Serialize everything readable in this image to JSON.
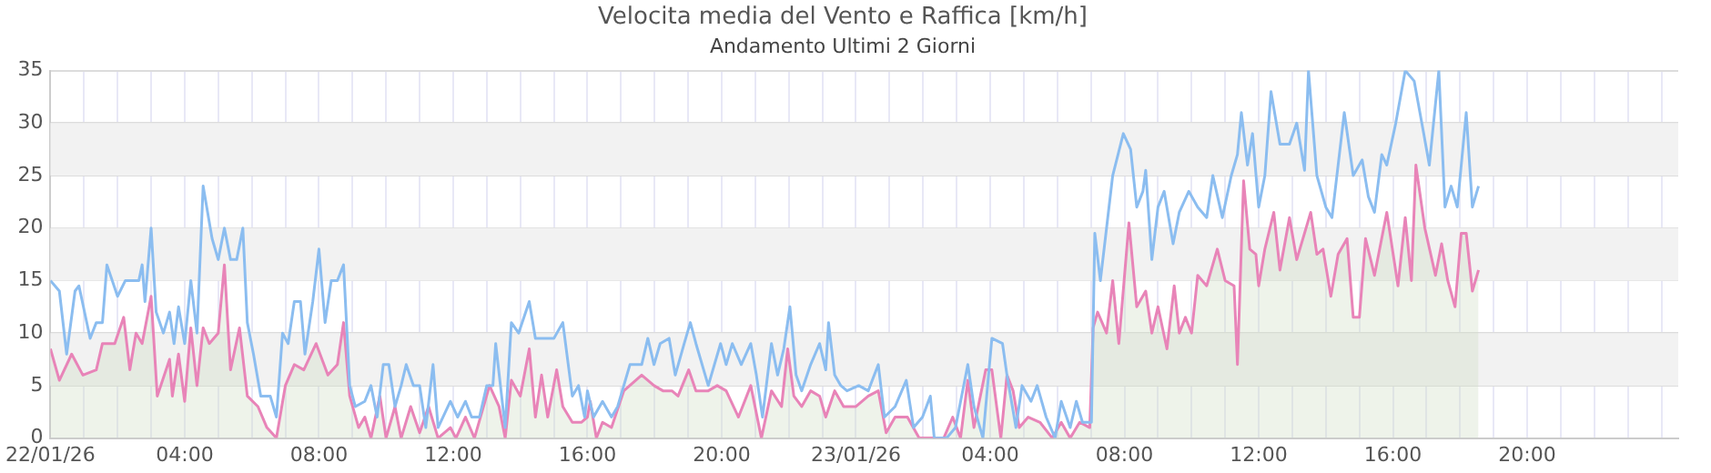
{
  "chart_data": {
    "type": "line",
    "title": "Velocita media del Vento e Raffica [km/h]",
    "subtitle": "Andamento Ultimi 2 Giorni",
    "xlim": [
      "--01-22T00:00",
      "--01-24T00:30"
    ],
    "xticks": [
      {
        "value": "--01-22T00:00",
        "label": "22/01/26"
      },
      {
        "value": "--01-22T01:00",
        "label": null
      },
      {
        "value": "--01-22T02:00",
        "label": null
      },
      {
        "value": "--01-22T03:00",
        "label": null
      },
      {
        "value": "--01-22T04:00",
        "label": "04:00"
      },
      {
        "value": "--01-22T05:00",
        "label": null
      },
      {
        "value": "--01-22T06:00",
        "label": null
      },
      {
        "value": "--01-22T07:00",
        "label": null
      },
      {
        "value": "--01-22T08:00",
        "label": "08:00"
      },
      {
        "value": "--01-22T09:00",
        "label": null
      },
      {
        "value": "--01-22T10:00",
        "label": null
      },
      {
        "value": "--01-22T11:00",
        "label": null
      },
      {
        "value": "--01-22T12:00",
        "label": "12:00"
      },
      {
        "value": "--01-22T13:00",
        "label": null
      },
      {
        "value": "--01-22T14:00",
        "label": null
      },
      {
        "value": "--01-22T15:00",
        "label": null
      },
      {
        "value": "--01-22T16:00",
        "label": "16:00"
      },
      {
        "value": "--01-22T17:00",
        "label": null
      },
      {
        "value": "--01-22T18:00",
        "label": null
      },
      {
        "value": "--01-22T19:00",
        "label": null
      },
      {
        "value": "--01-22T20:00",
        "label": "20:00"
      },
      {
        "value": "--01-22T21:00",
        "label": null
      },
      {
        "value": "--01-22T22:00",
        "label": null
      },
      {
        "value": "--01-22T23:00",
        "label": null
      },
      {
        "value": "--01-23T00:00",
        "label": "23/01/26"
      },
      {
        "value": "--01-23T01:00",
        "label": null
      },
      {
        "value": "--01-23T02:00",
        "label": null
      },
      {
        "value": "--01-23T03:00",
        "label": null
      },
      {
        "value": "--01-23T04:00",
        "label": "04:00"
      },
      {
        "value": "--01-23T05:00",
        "label": null
      },
      {
        "value": "--01-23T06:00",
        "label": null
      },
      {
        "value": "--01-23T07:00",
        "label": null
      },
      {
        "value": "--01-23T08:00",
        "label": "08:00"
      },
      {
        "value": "--01-23T09:00",
        "label": null
      },
      {
        "value": "--01-23T10:00",
        "label": null
      },
      {
        "value": "--01-23T11:00",
        "label": null
      },
      {
        "value": "--01-23T12:00",
        "label": "12:00"
      },
      {
        "value": "--01-23T13:00",
        "label": null
      },
      {
        "value": "--01-23T14:00",
        "label": null
      },
      {
        "value": "--01-23T15:00",
        "label": null
      },
      {
        "value": "--01-23T16:00",
        "label": "16:00"
      },
      {
        "value": "--01-23T17:00",
        "label": null
      },
      {
        "value": "--01-23T18:00",
        "label": null
      },
      {
        "value": "--01-23T19:00",
        "label": null
      },
      {
        "value": "--01-23T20:00",
        "label": "20:00"
      },
      {
        "value": "--01-23T21:00",
        "label": null
      },
      {
        "value": "--01-23T22:00",
        "label": null
      },
      {
        "value": "--01-23T23:00",
        "label": null
      },
      {
        "value": "--01-24T00:00",
        "label": null
      }
    ],
    "ylim": [
      0,
      35
    ],
    "yticks": [
      0,
      5,
      10,
      15,
      20,
      25,
      30,
      35
    ],
    "grid": true,
    "legend": false,
    "marker": "none",
    "line_style": "solid",
    "bands": [
      {
        "axis": "y",
        "from": 5,
        "to": 10,
        "color": "#f2f2f2"
      },
      {
        "axis": "y",
        "from": 15,
        "to": 20,
        "color": "#f2f2f2"
      },
      {
        "axis": "y",
        "from": 25,
        "to": 30,
        "color": "#f2f2f2"
      }
    ],
    "series": [
      {
        "color": "#8bbdf0",
        "x": [
          "--01-22T00:00",
          "--01-22T00:16",
          "--01-22T00:29",
          "--01-22T00:44",
          "--01-22T00:51",
          "--01-22T01:11",
          "--01-22T01:22",
          "--01-22T01:33",
          "--01-22T01:41",
          "--01-22T02:00",
          "--01-22T02:14",
          "--01-22T02:38",
          "--01-22T02:44",
          "--01-22T02:49",
          "--01-22T03:00",
          "--01-22T03:09",
          "--01-22T03:22",
          "--01-22T03:33",
          "--01-22T03:41",
          "--01-22T03:49",
          "--01-22T04:00",
          "--01-22T04:11",
          "--01-22T04:22",
          "--01-22T04:33",
          "--01-22T04:49",
          "--01-22T05:00",
          "--01-22T05:11",
          "--01-22T05:22",
          "--01-22T05:33",
          "--01-22T05:44",
          "--01-22T05:52",
          "--01-22T06:03",
          "--01-22T06:16",
          "--01-22T06:33",
          "--01-22T06:44",
          "--01-22T06:55",
          "--01-22T07:05",
          "--01-22T07:16",
          "--01-22T07:27",
          "--01-22T07:35",
          "--01-22T07:49",
          "--01-22T08:00",
          "--01-22T08:11",
          "--01-22T08:22",
          "--01-22T08:33",
          "--01-22T08:44",
          "--01-22T08:55",
          "--01-22T09:05",
          "--01-22T09:22",
          "--01-22T09:33",
          "--01-22T09:44",
          "--01-22T09:55",
          "--01-22T10:05",
          "--01-22T10:16",
          "--01-22T10:27",
          "--01-22T10:36",
          "--01-22T10:49",
          "--01-22T11:00",
          "--01-22T11:11",
          "--01-22T11:24",
          "--01-22T11:33",
          "--01-22T11:55",
          "--01-22T12:08",
          "--01-22T12:22",
          "--01-22T12:33",
          "--01-22T12:47",
          "--01-22T13:00",
          "--01-22T13:11",
          "--01-22T13:16",
          "--01-22T13:33",
          "--01-22T13:44",
          "--01-22T13:57",
          "--01-22T14:16",
          "--01-22T14:27",
          "--01-22T15:00",
          "--01-22T15:16",
          "--01-22T15:33",
          "--01-22T15:44",
          "--01-22T15:55",
          "--01-22T16:00",
          "--01-22T16:11",
          "--01-22T16:27",
          "--01-22T16:43",
          "--01-22T16:54",
          "--01-22T17:16",
          "--01-22T17:37",
          "--01-22T17:48",
          "--01-22T17:59",
          "--01-22T18:10",
          "--01-22T18:26",
          "--01-22T18:37",
          "--01-22T18:53",
          "--01-22T19:04",
          "--01-22T19:14",
          "--01-22T19:36",
          "--01-22T19:58",
          "--01-22T20:08",
          "--01-22T20:19",
          "--01-22T20:35",
          "--01-22T20:52",
          "--01-22T21:02",
          "--01-22T21:13",
          "--01-22T21:29",
          "--01-22T21:40",
          "--01-22T21:51",
          "--01-22T22:02",
          "--01-22T22:13",
          "--01-22T22:23",
          "--01-22T22:39",
          "--01-22T22:55",
          "--01-22T23:06",
          "--01-22T23:11",
          "--01-22T23:22",
          "--01-22T23:33",
          "--01-22T23:44",
          "--01-23T00:05",
          "--01-23T00:22",
          "--01-23T00:40",
          "--01-23T00:51",
          "--01-23T01:10",
          "--01-23T01:30",
          "--01-23T01:43",
          "--01-23T01:59",
          "--01-23T02:13",
          "--01-23T02:20",
          "--01-23T02:42",
          "--01-23T02:58",
          "--01-23T03:20",
          "--01-23T03:31",
          "--01-23T03:47",
          "--01-23T04:03",
          "--01-23T04:22",
          "--01-23T04:30",
          "--01-23T04:46",
          "--01-23T04:57",
          "--01-23T05:13",
          "--01-23T05:24",
          "--01-23T05:40",
          "--01-23T05:56",
          "--01-23T06:07",
          "--01-23T06:23",
          "--01-23T06:34",
          "--01-23T06:45",
          "--01-23T07:01",
          "--01-23T07:07",
          "--01-23T07:17",
          "--01-23T07:28",
          "--01-23T07:39",
          "--01-23T07:58",
          "--01-23T08:11",
          "--01-23T08:22",
          "--01-23T08:33",
          "--01-23T08:38",
          "--01-23T08:49",
          "--01-23T09:00",
          "--01-23T09:11",
          "--01-23T09:27",
          "--01-23T09:38",
          "--01-23T09:55",
          "--01-23T10:11",
          "--01-23T10:27",
          "--01-23T10:38",
          "--01-23T10:55",
          "--01-23T11:11",
          "--01-23T11:22",
          "--01-23T11:29",
          "--01-23T11:40",
          "--01-23T11:49",
          "--01-23T12:00",
          "--01-23T12:11",
          "--01-23T12:22",
          "--01-23T12:38",
          "--01-23T12:55",
          "--01-23T13:08",
          "--01-23T13:22",
          "--01-23T13:29",
          "--01-23T13:44",
          "--01-23T14:00",
          "--01-23T14:11",
          "--01-23T14:33",
          "--01-23T14:49",
          "--01-23T15:05",
          "--01-23T15:16",
          "--01-23T15:27",
          "--01-23T15:40",
          "--01-23T15:49",
          "--01-23T16:05",
          "--01-23T16:22",
          "--01-23T16:38",
          "--01-23T16:55",
          "--01-23T17:05",
          "--01-23T17:22",
          "--01-23T17:33",
          "--01-23T17:44",
          "--01-23T17:55",
          "--01-23T18:11",
          "--01-23T18:22",
          "--01-23T18:33"
        ],
        "values": [
          15,
          14,
          8,
          14,
          14.5,
          9.5,
          11,
          11,
          16.5,
          13.5,
          15,
          15,
          16.5,
          13,
          20,
          12,
          10,
          12,
          9,
          12.5,
          9,
          15,
          10,
          24,
          19,
          17,
          20,
          17,
          17,
          20,
          11,
          8,
          4,
          4,
          2,
          10,
          9,
          13,
          13,
          8,
          13,
          18,
          11,
          15,
          15,
          16.5,
          5,
          3,
          3.5,
          5,
          2,
          7,
          7,
          3,
          5,
          7,
          5,
          5,
          1,
          7,
          1,
          3.5,
          2,
          3.5,
          2,
          2,
          5,
          5,
          9,
          1,
          11,
          10,
          13,
          9.5,
          9.5,
          11,
          4,
          5,
          2,
          4.5,
          2,
          3.5,
          2,
          3,
          7,
          7,
          9.5,
          7,
          9,
          9.5,
          6,
          9,
          11,
          9,
          5,
          9,
          7,
          9,
          7,
          9,
          6,
          2,
          9,
          6,
          8.5,
          12.5,
          6,
          4.5,
          7,
          9,
          6.5,
          11,
          6,
          5,
          4.5,
          5,
          4.5,
          7,
          2,
          3,
          5.5,
          1,
          2,
          4,
          0,
          0,
          1,
          7,
          3,
          0,
          9.5,
          9,
          6,
          1,
          5,
          3.5,
          5,
          2,
          0,
          3.5,
          1,
          3.5,
          1.5,
          1.5,
          19.5,
          15,
          20,
          25,
          29,
          27.5,
          22,
          23.5,
          25.5,
          17,
          22,
          23.5,
          18.5,
          21.5,
          23.5,
          22,
          21,
          25,
          21,
          25,
          27,
          31,
          26,
          29,
          22,
          25,
          33,
          28,
          28,
          30,
          25.5,
          35,
          25,
          22,
          21,
          31,
          25,
          26.5,
          23,
          21.5,
          27,
          26,
          30,
          35,
          34,
          29,
          26,
          35,
          22,
          24,
          22,
          31,
          22,
          24
        ]
      },
      {
        "type": "area",
        "color": "#e884b8",
        "x": [
          "--01-22T00:00",
          "--01-22T00:16",
          "--01-22T00:38",
          "--01-22T00:58",
          "--01-22T01:22",
          "--01-22T01:33",
          "--01-22T01:55",
          "--01-22T02:11",
          "--01-22T02:22",
          "--01-22T02:33",
          "--01-22T02:44",
          "--01-22T03:00",
          "--01-22T03:11",
          "--01-22T03:33",
          "--01-22T03:38",
          "--01-22T03:49",
          "--01-22T04:00",
          "--01-22T04:11",
          "--01-22T04:22",
          "--01-22T04:33",
          "--01-22T04:44",
          "--01-22T05:00",
          "--01-22T05:11",
          "--01-22T05:22",
          "--01-22T05:38",
          "--01-22T05:52",
          "--01-22T06:11",
          "--01-22T06:27",
          "--01-22T06:44",
          "--01-22T07:00",
          "--01-22T07:16",
          "--01-22T07:33",
          "--01-22T07:55",
          "--01-22T08:16",
          "--01-22T08:33",
          "--01-22T08:44",
          "--01-22T08:55",
          "--01-22T09:11",
          "--01-22T09:22",
          "--01-22T09:33",
          "--01-22T09:49",
          "--01-22T10:00",
          "--01-22T10:16",
          "--01-22T10:27",
          "--01-22T10:44",
          "--01-22T11:00",
          "--01-22T11:16",
          "--01-22T11:33",
          "--01-22T11:55",
          "--01-22T12:05",
          "--01-22T12:22",
          "--01-22T12:38",
          "--01-22T13:05",
          "--01-22T13:22",
          "--01-22T13:33",
          "--01-22T13:44",
          "--01-22T14:00",
          "--01-22T14:16",
          "--01-22T14:27",
          "--01-22T14:38",
          "--01-22T14:49",
          "--01-22T15:05",
          "--01-22T15:16",
          "--01-22T15:33",
          "--01-22T15:49",
          "--01-22T16:00",
          "--01-22T16:05",
          "--01-22T16:16",
          "--01-22T16:27",
          "--01-22T16:43",
          "--01-22T17:05",
          "--01-22T17:37",
          "--01-22T17:59",
          "--01-22T18:15",
          "--01-22T18:31",
          "--01-22T18:42",
          "--01-22T19:01",
          "--01-22T19:14",
          "--01-22T19:36",
          "--01-22T19:52",
          "--01-22T20:08",
          "--01-22T20:30",
          "--01-22T20:52",
          "--01-22T21:11",
          "--01-22T21:29",
          "--01-22T21:47",
          "--01-22T21:58",
          "--01-22T22:09",
          "--01-22T22:23",
          "--01-22T22:39",
          "--01-22T22:55",
          "--01-22T23:06",
          "--01-22T23:22",
          "--01-22T23:38",
          "--01-23T00:00",
          "--01-23T00:22",
          "--01-23T00:40",
          "--01-23T00:54",
          "--01-23T01:10",
          "--01-23T01:32",
          "--01-23T01:53",
          "--01-23T02:15",
          "--01-23T02:37",
          "--01-23T02:53",
          "--01-23T03:07",
          "--01-23T03:20",
          "--01-23T03:31",
          "--01-23T03:52",
          "--01-23T04:03",
          "--01-23T04:19",
          "--01-23T04:30",
          "--01-23T04:41",
          "--01-23T04:52",
          "--01-23T05:08",
          "--01-23T05:29",
          "--01-23T05:51",
          "--01-23T06:07",
          "--01-23T06:23",
          "--01-23T06:40",
          "--01-23T06:58",
          "--01-23T07:04",
          "--01-23T07:12",
          "--01-23T07:28",
          "--01-23T07:39",
          "--01-23T07:50",
          "--01-23T08:08",
          "--01-23T08:22",
          "--01-23T08:38",
          "--01-23T08:49",
          "--01-23T09:00",
          "--01-23T09:16",
          "--01-23T09:29",
          "--01-23T09:38",
          "--01-23T09:49",
          "--01-23T10:00",
          "--01-23T10:11",
          "--01-23T10:27",
          "--01-23T10:46",
          "--01-23T11:00",
          "--01-23T11:16",
          "--01-23T11:22",
          "--01-23T11:33",
          "--01-23T11:44",
          "--01-23T11:55",
          "--01-23T12:00",
          "--01-23T12:11",
          "--01-23T12:27",
          "--01-23T12:38",
          "--01-23T12:55",
          "--01-23T13:08",
          "--01-23T13:33",
          "--01-23T13:44",
          "--01-23T13:55",
          "--01-23T14:09",
          "--01-23T14:22",
          "--01-23T14:38",
          "--01-23T14:49",
          "--01-23T15:00",
          "--01-23T15:11",
          "--01-23T15:27",
          "--01-23T15:49",
          "--01-23T16:09",
          "--01-23T16:22",
          "--01-23T16:33",
          "--01-23T16:41",
          "--01-23T16:57",
          "--01-23T17:16",
          "--01-23T17:27",
          "--01-23T17:38",
          "--01-23T17:51",
          "--01-23T18:02",
          "--01-23T18:11",
          "--01-23T18:22",
          "--01-23T18:33"
        ],
        "values": [
          8.5,
          5.5,
          8,
          6,
          6.5,
          9,
          9,
          11.5,
          6.5,
          10,
          9,
          13.5,
          4,
          7.5,
          4,
          8,
          3.5,
          10.5,
          5,
          10.5,
          9,
          10,
          16.5,
          6.5,
          10.5,
          4,
          3,
          1,
          0,
          5,
          7,
          6.5,
          9,
          6,
          7,
          11,
          4,
          1,
          2,
          0,
          4,
          0,
          3,
          0,
          3,
          0.5,
          3,
          0,
          1,
          0,
          2,
          0,
          5,
          3,
          0,
          5.5,
          4,
          8.5,
          2,
          6,
          2,
          6.5,
          3,
          1.5,
          1.5,
          2,
          3.5,
          0,
          1.5,
          1,
          4.5,
          6,
          5,
          4.5,
          4.5,
          4,
          6.5,
          4.5,
          4.5,
          5,
          4.5,
          2,
          5,
          0,
          4.5,
          3,
          8.5,
          4,
          3,
          4.5,
          4,
          2,
          4.5,
          3,
          3,
          4,
          4.5,
          0.5,
          2,
          2,
          0,
          0,
          0,
          2,
          0,
          5.5,
          1,
          6.5,
          6.5,
          0,
          6,
          4.5,
          1,
          2,
          1.5,
          0,
          1.5,
          0,
          1.5,
          1,
          10.5,
          12,
          10,
          15,
          9,
          20.5,
          12.5,
          14,
          10,
          12.5,
          8.5,
          14.5,
          10,
          11.5,
          10,
          15.5,
          14.5,
          18,
          15,
          14.5,
          7,
          24.5,
          18,
          17.5,
          14.5,
          18,
          21.5,
          16,
          21,
          17,
          21.5,
          17.5,
          18,
          13.5,
          17.5,
          19,
          11.5,
          11.5,
          19,
          15.5,
          21.5,
          14.5,
          21,
          15,
          26,
          20,
          15.5,
          18.5,
          15,
          12.5,
          19.5,
          19.5,
          14,
          16
        ]
      }
    ]
  }
}
